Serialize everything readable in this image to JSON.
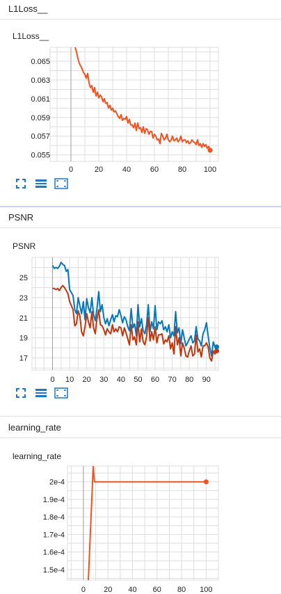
{
  "sections": [
    {
      "header": "L1Loss__",
      "card_title": "L1Loss__"
    },
    {
      "header": "PSNR",
      "card_title": "PSNR"
    },
    {
      "header": "learning_rate",
      "card_title": "learning_rate"
    }
  ],
  "tools": {
    "fit_icon": "fit-domain-icon",
    "toggle_icon": "toggle-y-log-icon",
    "expand_icon": "expand-icon"
  },
  "colors": {
    "orange": "#f4511e",
    "blue": "#0277bd",
    "red": "#bf360c",
    "grid": "#dddddd",
    "axis_zero": "#9e9e9e",
    "tool_blue": "#1976d2"
  },
  "chart_data": [
    {
      "type": "line",
      "title": "L1Loss__",
      "xlim": [
        -15,
        106
      ],
      "ylim": [
        0.0543,
        0.0665
      ],
      "x_ticks": [
        0,
        20,
        40,
        60,
        80,
        100
      ],
      "y_ticks": [
        0.055,
        0.057,
        0.059,
        0.061,
        0.063,
        0.065
      ],
      "y_tick_labels": [
        "0.055",
        "0.057",
        "0.059",
        "0.061",
        "0.063",
        "0.065"
      ],
      "series": [
        {
          "color": "#f4511e",
          "x": [
            3,
            4,
            5,
            6,
            7,
            8,
            9,
            10,
            11,
            12,
            13,
            14,
            15,
            16,
            17,
            18,
            19,
            20,
            21,
            22,
            23,
            24,
            25,
            26,
            27,
            28,
            29,
            30,
            31,
            32,
            33,
            34,
            35,
            36,
            37,
            38,
            39,
            40,
            41,
            42,
            43,
            44,
            45,
            46,
            47,
            48,
            49,
            50,
            51,
            52,
            53,
            54,
            55,
            56,
            57,
            58,
            59,
            60,
            61,
            62,
            63,
            64,
            65,
            66,
            67,
            68,
            69,
            70,
            71,
            72,
            73,
            74,
            75,
            76,
            77,
            78,
            79,
            80,
            81,
            82,
            83,
            84,
            85,
            86,
            87,
            88,
            89,
            90,
            91,
            92,
            93,
            94,
            95,
            96,
            97,
            98,
            99,
            100
          ],
          "y": [
            0.0665,
            0.066,
            0.0653,
            0.0648,
            0.0645,
            0.0642,
            0.0638,
            0.0636,
            0.0632,
            0.0637,
            0.0627,
            0.0622,
            0.0624,
            0.0617,
            0.0622,
            0.0613,
            0.0617,
            0.0611,
            0.0614,
            0.0612,
            0.0607,
            0.061,
            0.0605,
            0.0606,
            0.06,
            0.0603,
            0.0598,
            0.06,
            0.0596,
            0.0597,
            0.0594,
            0.0591,
            0.0589,
            0.0593,
            0.0587,
            0.0589,
            0.0588,
            0.0591,
            0.0584,
            0.0588,
            0.0582,
            0.0582,
            0.0579,
            0.0584,
            0.0576,
            0.0584,
            0.0578,
            0.0579,
            0.0574,
            0.058,
            0.0573,
            0.0578,
            0.0577,
            0.0572,
            0.0575,
            0.0575,
            0.0568,
            0.0572,
            0.057,
            0.0566,
            0.0567,
            0.0562,
            0.0573,
            0.057,
            0.0566,
            0.0568,
            0.0572,
            0.0566,
            0.0564,
            0.0566,
            0.057,
            0.0565,
            0.0566,
            0.0568,
            0.0564,
            0.0566,
            0.057,
            0.0564,
            0.0566,
            0.0566,
            0.0563,
            0.0565,
            0.0562,
            0.0563,
            0.0566,
            0.0564,
            0.0563,
            0.0561,
            0.0566,
            0.056,
            0.0562,
            0.0558,
            0.0562,
            0.0559,
            0.0561,
            0.0557,
            0.0559,
            0.0555
          ],
          "marker_last": true
        }
      ]
    },
    {
      "type": "line",
      "title": "PSNR",
      "xlim": [
        -12,
        97
      ],
      "ylim": [
        15.8,
        27.0
      ],
      "x_ticks": [
        0,
        10,
        20,
        30,
        40,
        50,
        60,
        70,
        80,
        90
      ],
      "y_ticks": [
        17,
        19,
        21,
        23,
        25
      ],
      "y_tick_labels": [
        "17",
        "19",
        "21",
        "23",
        "25"
      ],
      "series": [
        {
          "color": "#0277bd",
          "x": [
            0,
            1,
            2,
            3,
            4,
            5,
            6,
            7,
            8,
            9,
            10,
            11,
            12,
            13,
            14,
            15,
            16,
            17,
            18,
            19,
            20,
            21,
            22,
            23,
            24,
            25,
            26,
            27,
            28,
            29,
            30,
            31,
            32,
            33,
            34,
            35,
            36,
            37,
            38,
            39,
            40,
            41,
            42,
            43,
            44,
            45,
            46,
            47,
            48,
            49,
            50,
            51,
            52,
            53,
            54,
            55,
            56,
            57,
            58,
            59,
            60,
            61,
            62,
            63,
            64,
            65,
            66,
            67,
            68,
            69,
            70,
            71,
            72,
            73,
            74,
            75,
            76,
            77,
            78,
            79,
            80,
            81,
            82,
            83,
            84,
            85,
            86,
            87,
            88,
            89,
            90,
            91,
            92,
            93,
            94,
            95,
            96
          ],
          "y": [
            26.2,
            25.9,
            26.0,
            25.9,
            26.1,
            26.5,
            26.3,
            26.2,
            25.6,
            25.8,
            23.8,
            23.5,
            23.2,
            21.8,
            21.4,
            23.0,
            22.2,
            21.4,
            22.6,
            20.8,
            22.9,
            22.0,
            21.5,
            23.0,
            21.3,
            20.7,
            21.9,
            23.6,
            21.6,
            22.3,
            21.0,
            20.4,
            20.9,
            20.2,
            20.8,
            21.3,
            20.6,
            21.2,
            21.1,
            21.8,
            21.2,
            20.5,
            21.1,
            20.8,
            20.1,
            19.7,
            21.9,
            20.0,
            20.4,
            19.2,
            22.3,
            20.1,
            20.9,
            19.7,
            19.4,
            20.3,
            22.3,
            19.6,
            20.6,
            19.9,
            22.2,
            19.8,
            20.6,
            20.4,
            20.7,
            19.8,
            20.1,
            19.6,
            20.3,
            19.0,
            19.6,
            19.2,
            21.6,
            19.5,
            20.0,
            18.4,
            19.8,
            19.0,
            18.2,
            18.5,
            18.9,
            19.2,
            18.5,
            18.7,
            20.1,
            18.9,
            18.7,
            18.2,
            19.4,
            19.8,
            20.5,
            19.2,
            18.0,
            17.2,
            18.6,
            18.1,
            18.1
          ],
          "marker_last": true
        },
        {
          "color": "#bf360c",
          "x": [
            0,
            1,
            2,
            3,
            4,
            5,
            6,
            7,
            8,
            9,
            10,
            11,
            12,
            13,
            14,
            15,
            16,
            17,
            18,
            19,
            20,
            21,
            22,
            23,
            24,
            25,
            26,
            27,
            28,
            29,
            30,
            31,
            32,
            33,
            34,
            35,
            36,
            37,
            38,
            39,
            40,
            41,
            42,
            43,
            44,
            45,
            46,
            47,
            48,
            49,
            50,
            51,
            52,
            53,
            54,
            55,
            56,
            57,
            58,
            59,
            60,
            61,
            62,
            63,
            64,
            65,
            66,
            67,
            68,
            69,
            70,
            71,
            72,
            73,
            74,
            75,
            76,
            77,
            78,
            79,
            80,
            81,
            82,
            83,
            84,
            85,
            86,
            87,
            88,
            89,
            90,
            91,
            92,
            93,
            94,
            95,
            96
          ],
          "y": [
            23.9,
            23.9,
            23.8,
            23.9,
            23.7,
            24.0,
            24.2,
            24.0,
            23.7,
            23.4,
            22.6,
            22.2,
            21.8,
            20.2,
            20.4,
            21.7,
            21.2,
            19.6,
            19.2,
            20.1,
            21.4,
            20.6,
            20.0,
            21.6,
            20.0,
            19.4,
            20.9,
            21.8,
            20.3,
            20.2,
            19.8,
            19.3,
            19.9,
            19.6,
            19.4,
            20.3,
            19.6,
            19.9,
            19.6,
            20.1,
            20.0,
            19.2,
            20.0,
            19.5,
            18.9,
            18.3,
            20.3,
            18.8,
            19.1,
            18.3,
            20.6,
            18.6,
            19.9,
            18.6,
            18.3,
            19.1,
            21.0,
            18.7,
            19.6,
            18.8,
            20.1,
            18.5,
            19.3,
            19.3,
            19.4,
            18.4,
            18.8,
            18.6,
            19.2,
            17.9,
            18.5,
            17.4,
            20.1,
            18.3,
            19.0,
            17.2,
            18.5,
            18.0,
            17.2,
            17.1,
            17.7,
            18.2,
            17.2,
            17.4,
            19.3,
            17.6,
            17.9,
            17.1,
            18.2,
            18.2,
            18.5,
            18.1,
            17.0,
            16.7,
            17.7,
            17.4,
            17.7
          ],
          "marker_last": true
        }
      ]
    },
    {
      "type": "line",
      "title": "learning_rate",
      "xlim": [
        -13,
        110
      ],
      "ylim": [
        0.000144,
        0.000209
      ],
      "x_ticks": [
        0,
        20,
        40,
        60,
        80,
        100
      ],
      "y_ticks": [
        0.00015,
        0.00016,
        0.00017,
        0.00018,
        0.00019,
        0.0002
      ],
      "y_tick_labels": [
        "1.5e-4",
        "1.6e-4",
        "1.7e-4",
        "1.8e-4",
        "1.9e-4",
        "2e-4"
      ],
      "series": [
        {
          "color": "#f4511e",
          "x": [
            4,
            8,
            9,
            100
          ],
          "y": [
            0.000144,
            0.000209,
            0.0002,
            0.0002
          ],
          "marker_last": true
        }
      ]
    }
  ]
}
